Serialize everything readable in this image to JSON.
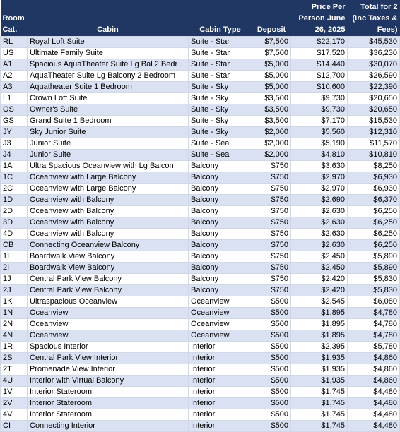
{
  "table": {
    "header": [
      "Room Cat.",
      "Cabin",
      "Cabin Type",
      "Deposit",
      "Price Per Person June 26, 2025",
      "Total for 2 (Inc Taxes & Fees)"
    ],
    "rows": [
      [
        "RL",
        "Royal Loft Suite",
        "Suite - Star",
        "$7,500",
        "$22,170",
        "$45,530"
      ],
      [
        "US",
        "Ultimate Family Suite",
        "Suite - Star",
        "$7,500",
        "$17,520",
        "$36,230"
      ],
      [
        "A1",
        "Spacious AquaTheater Suite Lg Bal 2 Bedr",
        "Suite - Star",
        "$5,000",
        "$14,440",
        "$30,070"
      ],
      [
        "A2",
        "AquaTheater  Suite Lg Balcony 2 Bedroom",
        "Suite - Star",
        "$5,000",
        "$12,700",
        "$26,590"
      ],
      [
        "A3",
        "Aquatheater Suite 1 Bedroom",
        "Suite - Sky",
        "$5,000",
        "$10,600",
        "$22,390"
      ],
      [
        "L1",
        "Crown Loft Suite",
        "Suite - Sky",
        "$3,500",
        "$9,730",
        "$20,650"
      ],
      [
        "OS",
        "Owner's Suite",
        "Suite - Sky",
        "$3,500",
        "$9,730",
        "$20,650"
      ],
      [
        "GS",
        "Grand Suite 1 Bedroom",
        "Suite - Sky",
        "$3,500",
        "$7,170",
        "$15,530"
      ],
      [
        "JY",
        "Sky Junior Suite",
        "Suite - Sky",
        "$2,000",
        "$5,560",
        "$12,310"
      ],
      [
        "J3",
        "Junior Suite",
        "Suite - Sea",
        "$2,000",
        "$5,190",
        "$11,570"
      ],
      [
        "J4",
        "Junior Suite",
        "Suite - Sea",
        "$2,000",
        "$4,810",
        "$10,810"
      ],
      [
        "1A",
        "Ultra Spacious Oceanview with Lg Balcon",
        "Balcony",
        "$750",
        "$3,630",
        "$8,250"
      ],
      [
        "1C",
        "Oceanview with Large Balcony",
        "Balcony",
        "$750",
        "$2,970",
        "$6,930"
      ],
      [
        "2C",
        "Oceanview with Large Balcony",
        "Balcony",
        "$750",
        "$2,970",
        "$6,930"
      ],
      [
        "1D",
        "Oceanview with Balcony",
        "Balcony",
        "$750",
        "$2,690",
        "$6,370"
      ],
      [
        "2D",
        "Oceanview with Balcony",
        "Balcony",
        "$750",
        "$2,630",
        "$6,250"
      ],
      [
        "3D",
        "Oceanview with Balcony",
        "Balcony",
        "$750",
        "$2,630",
        "$6,250"
      ],
      [
        "4D",
        "Oceanview with Balcony",
        "Balcony",
        "$750",
        "$2,630",
        "$6,250"
      ],
      [
        "CB",
        "Connecting Oceanview Balcony",
        "Balcony",
        "$750",
        "$2,630",
        "$6,250"
      ],
      [
        "1I",
        "Boardwalk View Balcony",
        "Balcony",
        "$750",
        "$2,450",
        "$5,890"
      ],
      [
        "2I",
        "Boardwalk View Balcony",
        "Balcony",
        "$750",
        "$2,450",
        "$5,890"
      ],
      [
        "1J",
        "Central Park View Balcony",
        "Balcony",
        "$750",
        "$2,420",
        "$5,830"
      ],
      [
        "2J",
        "Central Park View Balcony",
        "Balcony",
        "$750",
        "$2,420",
        "$5,830"
      ],
      [
        "1K",
        "Ultraspacious Oceanview",
        "Oceanview",
        "$500",
        "$2,545",
        "$6,080"
      ],
      [
        "1N",
        "Oceanview",
        "Oceanview",
        "$500",
        "$1,895",
        "$4,780"
      ],
      [
        "2N",
        "Oceanview",
        "Oceanview",
        "$500",
        "$1,895",
        "$4,780"
      ],
      [
        "4N",
        "Oceanview",
        "Oceanview",
        "$500",
        "$1,895",
        "$4,780"
      ],
      [
        "1R",
        "Spacious Interior",
        "Interior",
        "$500",
        "$2,395",
        "$5,780"
      ],
      [
        "2S",
        "Central Park View Interior",
        "Interior",
        "$500",
        "$1,935",
        "$4,860"
      ],
      [
        "2T",
        "Promenade View Interior",
        "Interior",
        "$500",
        "$1,935",
        "$4,860"
      ],
      [
        "4U",
        "Interior with Virtual Balcony",
        "Interior",
        "$500",
        "$1,935",
        "$4,860"
      ],
      [
        "1V",
        "Interior Stateroom",
        "Interior",
        "$500",
        "$1,745",
        "$4,480"
      ],
      [
        "2V",
        "Interior Stateroom",
        "Interior",
        "$500",
        "$1,745",
        "$4,480"
      ],
      [
        "4V",
        "Interior Stateroom",
        "Interior",
        "$500",
        "$1,745",
        "$4,480"
      ],
      [
        "CI",
        "Connecting Interior",
        "Interior",
        "$500",
        "$1,745",
        "$4,480"
      ]
    ]
  }
}
